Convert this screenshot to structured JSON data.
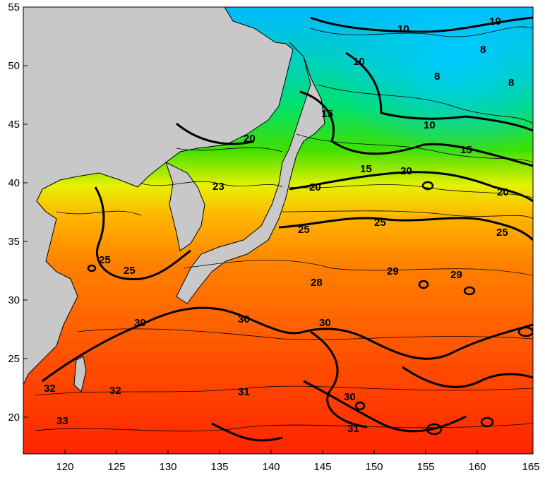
{
  "map": {
    "x_axis": {
      "ticks": [
        "120",
        "125",
        "130",
        "135",
        "140",
        "145",
        "150",
        "155",
        "160",
        "165"
      ]
    },
    "y_axis": {
      "ticks": [
        "55",
        "50",
        "45",
        "40",
        "35",
        "30",
        "25",
        "20"
      ]
    },
    "contour_labels": [
      "10",
      "10",
      "10",
      "10",
      "8",
      "8",
      "8",
      "15",
      "15",
      "15",
      "20",
      "20",
      "20",
      "20",
      "23",
      "25",
      "25",
      "25",
      "25",
      "25",
      "28",
      "29",
      "29",
      "30",
      "30",
      "30",
      "30",
      "31",
      "31",
      "32",
      "32",
      "33"
    ],
    "colors": {
      "land": "#c8c8c8",
      "sst_cold": "#00c8ff",
      "sst_cool": "#00e07a",
      "sst_green": "#58e000",
      "sst_yellow": "#f0f000",
      "sst_orange": "#ff9a00",
      "sst_warm": "#ff5a00",
      "sst_hot": "#ff2a00"
    }
  }
}
